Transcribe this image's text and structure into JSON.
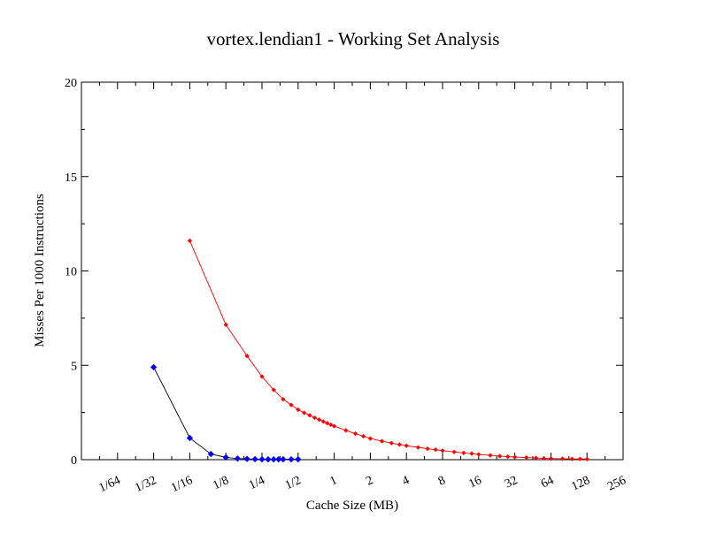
{
  "chart_data": {
    "type": "line",
    "title": "vortex.lendian1 - Working Set Analysis",
    "xlabel": "Cache Size (MB)",
    "ylabel": "Misses Per 1000 Instructions",
    "x_scale": "log2",
    "xlim": [
      0.0078125,
      256
    ],
    "ylim": [
      0,
      20
    ],
    "x_ticks": [
      {
        "value": 0.015625,
        "label": "1/64"
      },
      {
        "value": 0.03125,
        "label": "1/32"
      },
      {
        "value": 0.0625,
        "label": "1/16"
      },
      {
        "value": 0.125,
        "label": "1/8"
      },
      {
        "value": 0.25,
        "label": "1/4"
      },
      {
        "value": 0.5,
        "label": "1/2"
      },
      {
        "value": 1,
        "label": "1"
      },
      {
        "value": 2,
        "label": "2"
      },
      {
        "value": 4,
        "label": "4"
      },
      {
        "value": 8,
        "label": "8"
      },
      {
        "value": 16,
        "label": "16"
      },
      {
        "value": 32,
        "label": "32"
      },
      {
        "value": 64,
        "label": "64"
      },
      {
        "value": 128,
        "label": "128"
      },
      {
        "value": 256,
        "label": "256"
      }
    ],
    "y_ticks": [
      {
        "value": 0,
        "label": "0"
      },
      {
        "value": 5,
        "label": "5"
      },
      {
        "value": 10,
        "label": "10"
      },
      {
        "value": 15,
        "label": "15"
      },
      {
        "value": 20,
        "label": "20"
      }
    ],
    "grid": false,
    "series": [
      {
        "color": "#0000ff",
        "x": [
          0.03125,
          0.0625,
          0.09375,
          0.125,
          0.15625,
          0.1875,
          0.21875,
          0.25,
          0.28125,
          0.3125,
          0.34375,
          0.375,
          0.4375,
          0.5
        ],
        "y": [
          4.9,
          1.15,
          0.3,
          0.12,
          0.06,
          0.04,
          0.03,
          0.02,
          0.02,
          0.02,
          0.02,
          0.02,
          0.02,
          0.02
        ]
      },
      {
        "color": "#ff0000",
        "x": [
          0.0625,
          0.125,
          0.1875,
          0.25,
          0.3125,
          0.375,
          0.4375,
          0.5,
          0.5625,
          0.625,
          0.6875,
          0.75,
          0.8125,
          0.875,
          0.9375,
          1,
          1.25,
          1.5,
          1.75,
          2,
          2.5,
          3,
          3.5,
          4,
          5,
          6,
          7,
          8,
          10,
          12,
          14,
          16,
          20,
          24,
          28,
          32,
          40,
          48,
          56,
          64,
          80,
          96,
          112,
          128
        ],
        "y": [
          11.6,
          7.15,
          5.5,
          4.4,
          3.7,
          3.2,
          2.9,
          2.65,
          2.48,
          2.35,
          2.22,
          2.12,
          2.02,
          1.93,
          1.85,
          1.78,
          1.55,
          1.38,
          1.24,
          1.12,
          0.98,
          0.88,
          0.8,
          0.74,
          0.65,
          0.58,
          0.53,
          0.48,
          0.41,
          0.36,
          0.32,
          0.28,
          0.23,
          0.19,
          0.16,
          0.14,
          0.11,
          0.09,
          0.07,
          0.06,
          0.05,
          0.04,
          0.04,
          0.03
        ]
      }
    ]
  }
}
